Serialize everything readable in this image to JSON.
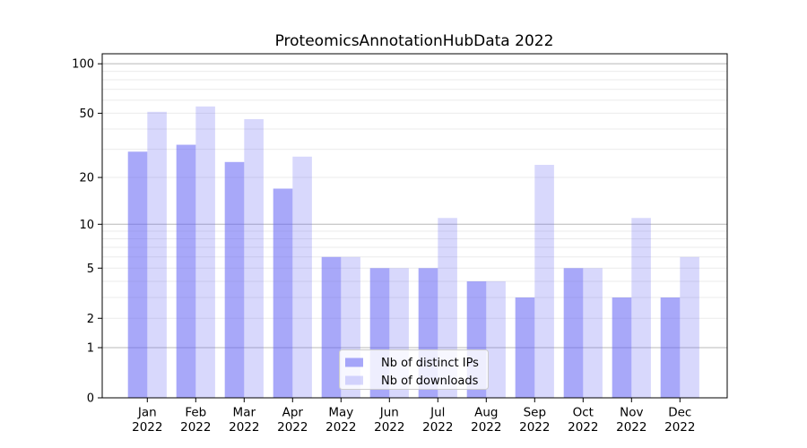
{
  "title": "ProteomicsAnnotationHubData 2022",
  "chart_data": {
    "type": "bar",
    "categories": [
      "Jan 2022",
      "Feb 2022",
      "Mar 2022",
      "Apr 2022",
      "May 2022",
      "Jun 2022",
      "Jul 2022",
      "Aug 2022",
      "Sep 2022",
      "Oct 2022",
      "Nov 2022",
      "Dec 2022"
    ],
    "series": [
      {
        "name": "Nb of distinct IPs",
        "color": "rgba(100,100,245,0.56)",
        "values": [
          29,
          32,
          25,
          17,
          6,
          5,
          5,
          4,
          3,
          5,
          3,
          3
        ]
      },
      {
        "name": "Nb of downloads",
        "color": "rgba(100,100,245,0.25)",
        "values": [
          51,
          55,
          46,
          27,
          6,
          5,
          11,
          4,
          24,
          5,
          11,
          6
        ]
      }
    ],
    "yscale": "log1p",
    "yticks": [
      0,
      1,
      2,
      5,
      10,
      20,
      50,
      100
    ],
    "major_gridlines": [
      1,
      10,
      100
    ],
    "minor_gridlines": [
      2,
      3,
      4,
      5,
      6,
      7,
      8,
      9,
      20,
      30,
      40,
      50,
      60,
      70,
      80,
      90
    ],
    "ylim": [
      0,
      115
    ],
    "grid": true,
    "legend_position": "lower center"
  },
  "colors": {
    "bar_distinct_ips": "rgba(100,100,245,0.56)",
    "bar_downloads": "rgba(100,100,245,0.25)",
    "grid_major": "#b8b8b8",
    "grid_minor": "#ebebeb",
    "axis": "#000000",
    "legend_border": "#cccccc",
    "legend_background": "rgba(255,255,255,0.8)",
    "background": "#ffffff"
  }
}
